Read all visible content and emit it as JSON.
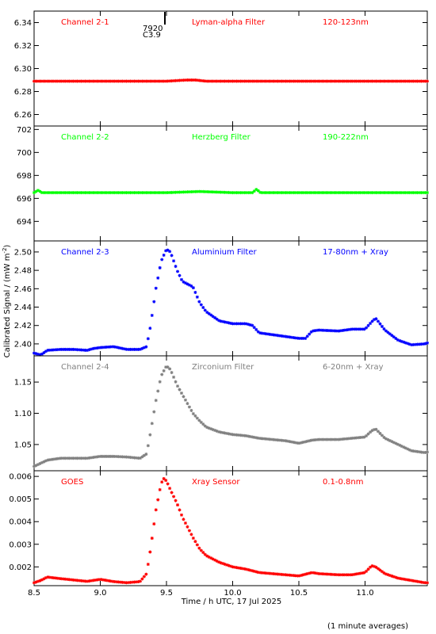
{
  "figure": {
    "xlabel": "Time / h UTC, 17 Jul 2025",
    "ylabel": "Calibrated Signal / (mW m",
    "ylabel_sup": "-2",
    "ylabel_close": ")",
    "footnote": "(1 minute averages)",
    "marker_labels": [
      "7920",
      "C3.9"
    ]
  },
  "chart_data": [
    {
      "type": "scatter",
      "channel": "Channel 2-1",
      "filter": "Lyman-alpha Filter",
      "band": "120-123nm",
      "color": "#ff0000",
      "xlim": [
        8.5,
        11.47
      ],
      "ylim": [
        6.25,
        6.35
      ],
      "yticks": [
        6.26,
        6.28,
        6.3,
        6.32,
        6.34
      ],
      "ytick_labels": [
        "6.26",
        "6.28",
        "6.30",
        "6.32",
        "6.34"
      ],
      "series": [
        {
          "x": [
            8.5,
            9.0,
            9.5,
            9.65,
            9.72,
            9.8,
            10.2,
            10.5,
            11.0,
            11.47
          ],
          "y": [
            6.289,
            6.289,
            6.289,
            6.29,
            6.29,
            6.289,
            6.289,
            6.289,
            6.289,
            6.289
          ]
        }
      ]
    },
    {
      "type": "scatter",
      "channel": "Channel 2-2",
      "filter": "Herzberg Filter",
      "band": "190-222nm",
      "color": "#00ff00",
      "xlim": [
        8.5,
        11.47
      ],
      "ylim": [
        692.3,
        702.3
      ],
      "yticks": [
        694,
        696,
        698,
        700,
        702
      ],
      "ytick_labels": [
        "694",
        "696",
        "698",
        "700",
        "702"
      ],
      "series": [
        {
          "x": [
            8.5,
            8.53,
            8.56,
            8.6,
            9.0,
            9.5,
            9.75,
            10.0,
            10.15,
            10.18,
            10.21,
            10.5,
            11.0,
            11.47
          ],
          "y": [
            696.5,
            696.7,
            696.5,
            696.5,
            696.5,
            696.5,
            696.6,
            696.5,
            696.5,
            696.8,
            696.5,
            696.5,
            696.5,
            696.5
          ]
        }
      ]
    },
    {
      "type": "scatter",
      "channel": "Channel 2-3",
      "filter": "Aluminium Filter",
      "band": "17-80nm + Xray",
      "color": "#0000ff",
      "xlim": [
        8.5,
        11.47
      ],
      "ylim": [
        2.387,
        2.512
      ],
      "yticks": [
        2.4,
        2.42,
        2.44,
        2.46,
        2.48,
        2.5
      ],
      "ytick_labels": [
        "2.40",
        "2.42",
        "2.44",
        "2.46",
        "2.48",
        "2.50"
      ],
      "series": [
        {
          "x": [
            8.5,
            8.55,
            8.6,
            8.7,
            8.8,
            8.9,
            8.95,
            9.0,
            9.1,
            9.2,
            9.3,
            9.35,
            9.38,
            9.42,
            9.46,
            9.5,
            9.53,
            9.58,
            9.62,
            9.7,
            9.75,
            9.8,
            9.9,
            10.0,
            10.1,
            10.15,
            10.2,
            10.3,
            10.4,
            10.5,
            10.55,
            10.6,
            10.65,
            10.8,
            10.9,
            11.0,
            11.05,
            11.08,
            11.15,
            11.25,
            11.35,
            11.45,
            11.47
          ],
          "y": [
            2.39,
            2.388,
            2.393,
            2.394,
            2.394,
            2.393,
            2.395,
            2.396,
            2.397,
            2.394,
            2.394,
            2.397,
            2.42,
            2.46,
            2.49,
            2.503,
            2.5,
            2.48,
            2.468,
            2.462,
            2.445,
            2.435,
            2.425,
            2.422,
            2.422,
            2.42,
            2.412,
            2.41,
            2.408,
            2.406,
            2.406,
            2.414,
            2.415,
            2.414,
            2.416,
            2.416,
            2.424,
            2.428,
            2.415,
            2.404,
            2.399,
            2.4,
            2.401
          ]
        }
      ]
    },
    {
      "type": "scatter",
      "channel": "Channel 2-4",
      "filter": "Zirconium Filter",
      "band": "6-20nm + Xray",
      "color": "#808080",
      "xlim": [
        8.5,
        11.47
      ],
      "ylim": [
        1.008,
        1.192
      ],
      "yticks": [
        1.05,
        1.1,
        1.15
      ],
      "ytick_labels": [
        "1.05",
        "1.10",
        "1.15"
      ],
      "series": [
        {
          "x": [
            8.5,
            8.55,
            8.6,
            8.7,
            8.8,
            8.9,
            9.0,
            9.1,
            9.2,
            9.3,
            9.35,
            9.38,
            9.42,
            9.46,
            9.5,
            9.53,
            9.58,
            9.62,
            9.7,
            9.75,
            9.8,
            9.9,
            10.0,
            10.1,
            10.2,
            10.3,
            10.4,
            10.5,
            10.6,
            10.65,
            10.8,
            10.9,
            11.0,
            11.05,
            11.08,
            11.15,
            11.25,
            11.35,
            11.45,
            11.47
          ],
          "y": [
            1.015,
            1.02,
            1.025,
            1.028,
            1.028,
            1.028,
            1.031,
            1.031,
            1.03,
            1.028,
            1.035,
            1.07,
            1.12,
            1.16,
            1.176,
            1.17,
            1.145,
            1.13,
            1.1,
            1.088,
            1.078,
            1.07,
            1.066,
            1.064,
            1.06,
            1.058,
            1.056,
            1.052,
            1.057,
            1.058,
            1.058,
            1.06,
            1.062,
            1.072,
            1.075,
            1.06,
            1.05,
            1.04,
            1.037,
            1.038
          ]
        }
      ]
    },
    {
      "type": "scatter",
      "channel": "GOES",
      "filter": "Xray Sensor",
      "band": "0.1-0.8nm",
      "color": "#ff0000",
      "xlim": [
        8.5,
        11.47
      ],
      "ylim": [
        0.00117,
        0.00625
      ],
      "yticks": [
        0.002,
        0.003,
        0.004,
        0.005,
        0.006
      ],
      "ytick_labels": [
        "0.002",
        "0.003",
        "0.004",
        "0.005",
        "0.006"
      ],
      "series": [
        {
          "x": [
            8.5,
            8.55,
            8.6,
            8.7,
            8.8,
            8.9,
            9.0,
            9.1,
            9.2,
            9.3,
            9.35,
            9.38,
            9.42,
            9.46,
            9.48,
            9.5,
            9.53,
            9.58,
            9.62,
            9.7,
            9.75,
            9.8,
            9.9,
            10.0,
            10.1,
            10.2,
            10.3,
            10.4,
            10.5,
            10.6,
            10.65,
            10.8,
            10.9,
            11.0,
            11.05,
            11.08,
            11.15,
            11.25,
            11.35,
            11.45,
            11.47
          ],
          "y": [
            0.0013,
            0.0014,
            0.00155,
            0.00148,
            0.00142,
            0.00136,
            0.00145,
            0.00135,
            0.0013,
            0.00135,
            0.0017,
            0.0028,
            0.0045,
            0.0057,
            0.0059,
            0.0058,
            0.0054,
            0.0048,
            0.0042,
            0.0033,
            0.0028,
            0.0025,
            0.0022,
            0.002,
            0.0019,
            0.00175,
            0.0017,
            0.00165,
            0.0016,
            0.00175,
            0.0017,
            0.00165,
            0.00165,
            0.00175,
            0.00205,
            0.002,
            0.0017,
            0.0015,
            0.0014,
            0.0013,
            0.0013
          ]
        }
      ]
    }
  ],
  "xticks": [
    8.5,
    9.0,
    9.5,
    10.0,
    10.5,
    11.0
  ],
  "xtick_labels": [
    "8.5",
    "9.0",
    "9.5",
    "10.0",
    "10.5",
    "11.0"
  ]
}
